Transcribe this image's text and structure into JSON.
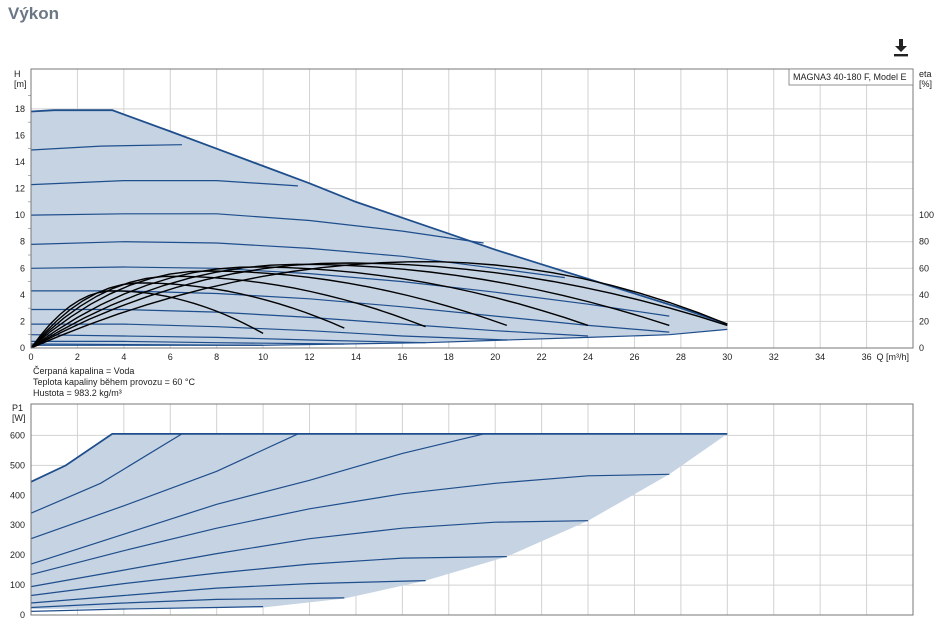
{
  "page": {
    "title": "Výkon"
  },
  "toolbar": {
    "download_icon": "download-icon"
  },
  "colors": {
    "curve": "#1f4e8c",
    "area": "#c5d3e3",
    "grid": "#d2d2d2",
    "efficiency": "#000000",
    "axis": "#777777"
  },
  "chart_data": [
    {
      "type": "line",
      "title": "",
      "model_label": "MAGNA3 40-180 F, Model E",
      "ylabel_line1": "H",
      "ylabel_line2": "[m]",
      "y2label_line1": "eta",
      "y2label_line2": "[%]",
      "xlabel": "Q [m³/h]",
      "xlim": [
        0,
        38
      ],
      "ylim": [
        0,
        21
      ],
      "y2lim": [
        0,
        100
      ],
      "grid": true,
      "x_ticks": [
        0,
        2,
        4,
        6,
        8,
        10,
        12,
        14,
        16,
        18,
        20,
        22,
        24,
        26,
        28,
        30,
        32,
        34,
        36
      ],
      "y_ticks": [
        0,
        2,
        4,
        6,
        8,
        10,
        12,
        14,
        16,
        18
      ],
      "y2_ticks": [
        0,
        20,
        40,
        60,
        80,
        100
      ],
      "max_curve": [
        [
          0,
          17.8
        ],
        [
          1,
          17.9
        ],
        [
          3.5,
          17.9
        ],
        [
          6,
          16.3
        ],
        [
          8,
          15
        ],
        [
          10,
          13.7
        ],
        [
          12,
          12.4
        ],
        [
          14,
          11
        ],
        [
          16,
          9.8
        ],
        [
          18,
          8.6
        ],
        [
          20,
          7.4
        ],
        [
          22,
          6.3
        ],
        [
          24,
          5.2
        ],
        [
          26,
          4.1
        ],
        [
          28,
          3
        ],
        [
          30,
          1.8
        ]
      ],
      "min_curve": [
        [
          0,
          0.3
        ],
        [
          10,
          0.2
        ],
        [
          13.5,
          0.3
        ],
        [
          17,
          0.4
        ],
        [
          20.5,
          0.6
        ],
        [
          24,
          0.8
        ],
        [
          27.5,
          1.0
        ],
        [
          30,
          1.4
        ]
      ],
      "series": [
        {
          "values": [
            [
              0,
              14.9
            ],
            [
              3,
              15.2
            ],
            [
              6.5,
              15.3
            ]
          ]
        },
        {
          "values": [
            [
              0,
              12.3
            ],
            [
              4,
              12.6
            ],
            [
              8,
              12.6
            ],
            [
              11.5,
              12.2
            ]
          ]
        },
        {
          "values": [
            [
              0,
              10.0
            ],
            [
              4,
              10.1
            ],
            [
              8,
              10.1
            ],
            [
              12,
              9.6
            ],
            [
              16,
              8.8
            ],
            [
              19.5,
              7.9
            ]
          ]
        },
        {
          "values": [
            [
              0,
              7.8
            ],
            [
              4,
              8.0
            ],
            [
              8,
              7.9
            ],
            [
              12,
              7.5
            ],
            [
              16,
              6.9
            ],
            [
              20,
              6.0
            ],
            [
              23,
              5.3
            ]
          ]
        },
        {
          "values": [
            [
              0,
              6.0
            ],
            [
              4,
              6.1
            ],
            [
              8,
              6.0
            ],
            [
              12,
              5.6
            ],
            [
              16,
              5.0
            ],
            [
              20,
              4.2
            ],
            [
              24,
              3.3
            ],
            [
              27.5,
              2.4
            ]
          ]
        },
        {
          "values": [
            [
              0,
              4.3
            ],
            [
              4,
              4.3
            ],
            [
              8,
              4.1
            ],
            [
              12,
              3.7
            ],
            [
              16,
              3.1
            ],
            [
              20,
              2.4
            ],
            [
              24,
              1.7
            ],
            [
              27.5,
              1.2
            ]
          ]
        },
        {
          "values": [
            [
              0,
              2.9
            ],
            [
              4,
              2.9
            ],
            [
              8,
              2.7
            ],
            [
              12,
              2.3
            ],
            [
              16,
              1.8
            ],
            [
              20,
              1.3
            ],
            [
              24,
              0.9
            ]
          ]
        },
        {
          "values": [
            [
              0,
              1.8
            ],
            [
              4,
              1.8
            ],
            [
              8,
              1.6
            ],
            [
              12,
              1.3
            ],
            [
              16,
              0.9
            ],
            [
              20.5,
              0.6
            ]
          ]
        },
        {
          "values": [
            [
              0,
              1.0
            ],
            [
              4,
              0.9
            ],
            [
              8,
              0.8
            ],
            [
              12,
              0.6
            ],
            [
              17,
              0.4
            ]
          ]
        },
        {
          "values": [
            [
              0,
              0.5
            ],
            [
              4,
              0.5
            ],
            [
              8,
              0.4
            ],
            [
              13.5,
              0.3
            ]
          ]
        },
        {
          "values": [
            [
              0,
              0.2
            ],
            [
              5,
              0.2
            ],
            [
              10,
              0.2
            ]
          ]
        }
      ],
      "efficiency_curves": [
        {
          "peak_x": 3.5,
          "peak": 43,
          "end_x": 10,
          "end": 11
        },
        {
          "peak_x": 4.7,
          "peak": 49,
          "end_x": 13.5,
          "end": 15
        },
        {
          "peak_x": 6,
          "peak": 54,
          "end_x": 17,
          "end": 16
        },
        {
          "peak_x": 7.5,
          "peak": 58,
          "end_x": 20.5,
          "end": 17
        },
        {
          "peak_x": 9.5,
          "peak": 61,
          "end_x": 24,
          "end": 17
        },
        {
          "peak_x": 11.5,
          "peak": 63,
          "end_x": 27.5,
          "end": 17
        },
        {
          "peak_x": 13.5,
          "peak": 64,
          "end_x": 30,
          "end": 17
        },
        {
          "peak_x": 17,
          "peak": 65,
          "end_x": 30,
          "end": 18
        }
      ]
    },
    {
      "type": "line",
      "title": "",
      "ylabel_line1": "P1",
      "ylabel_line2": "[W]",
      "xlim": [
        0,
        38
      ],
      "ylim": [
        0,
        705
      ],
      "grid": true,
      "y_ticks": [
        0,
        100,
        200,
        300,
        400,
        500,
        600
      ],
      "max_curve": [
        [
          0,
          445
        ],
        [
          1.5,
          500
        ],
        [
          3.5,
          605
        ],
        [
          30,
          605
        ]
      ],
      "min_curve": [
        [
          0,
          20
        ],
        [
          10,
          25
        ],
        [
          13.5,
          55
        ],
        [
          17,
          115
        ],
        [
          20.5,
          195
        ],
        [
          24,
          315
        ],
        [
          27.5,
          470
        ],
        [
          30,
          605
        ]
      ],
      "series": [
        {
          "values": [
            [
              0,
              340
            ],
            [
              3,
              440
            ],
            [
              6.5,
              605
            ]
          ]
        },
        {
          "values": [
            [
              0,
              255
            ],
            [
              4,
              365
            ],
            [
              8,
              480
            ],
            [
              11.5,
              605
            ]
          ]
        },
        {
          "values": [
            [
              0,
              170
            ],
            [
              4,
              270
            ],
            [
              8,
              370
            ],
            [
              12,
              450
            ],
            [
              16,
              540
            ],
            [
              19.5,
              605
            ]
          ]
        },
        {
          "values": [
            [
              0,
              135
            ],
            [
              4,
              215
            ],
            [
              8,
              290
            ],
            [
              12,
              355
            ],
            [
              16,
              405
            ],
            [
              20,
              440
            ],
            [
              24,
              465
            ],
            [
              27.5,
              470
            ]
          ]
        },
        {
          "values": [
            [
              0,
              95
            ],
            [
              4,
              150
            ],
            [
              8,
              205
            ],
            [
              12,
              255
            ],
            [
              16,
              290
            ],
            [
              20,
              310
            ],
            [
              24,
              315
            ]
          ]
        },
        {
          "values": [
            [
              0,
              65
            ],
            [
              4,
              105
            ],
            [
              8,
              140
            ],
            [
              12,
              170
            ],
            [
              16,
              190
            ],
            [
              20.5,
              195
            ]
          ]
        },
        {
          "values": [
            [
              0,
              40
            ],
            [
              4,
              65
            ],
            [
              8,
              90
            ],
            [
              12,
              105
            ],
            [
              17,
              115
            ]
          ]
        },
        {
          "values": [
            [
              0,
              25
            ],
            [
              4,
              40
            ],
            [
              8,
              52
            ],
            [
              13.5,
              57
            ]
          ]
        },
        {
          "values": [
            [
              0,
              12
            ],
            [
              4,
              20
            ],
            [
              8,
              25
            ],
            [
              10,
              28
            ]
          ]
        },
        {
          "values": [
            [
              6,
              605
            ],
            [
              18,
              605
            ]
          ]
        }
      ]
    }
  ],
  "fluid_info": {
    "line1": "Čerpaná kapalina = Voda",
    "line2": "Teplota kapaliny během provozu = 60 °C",
    "line3": "Hustota = 983.2 kg/m³"
  }
}
